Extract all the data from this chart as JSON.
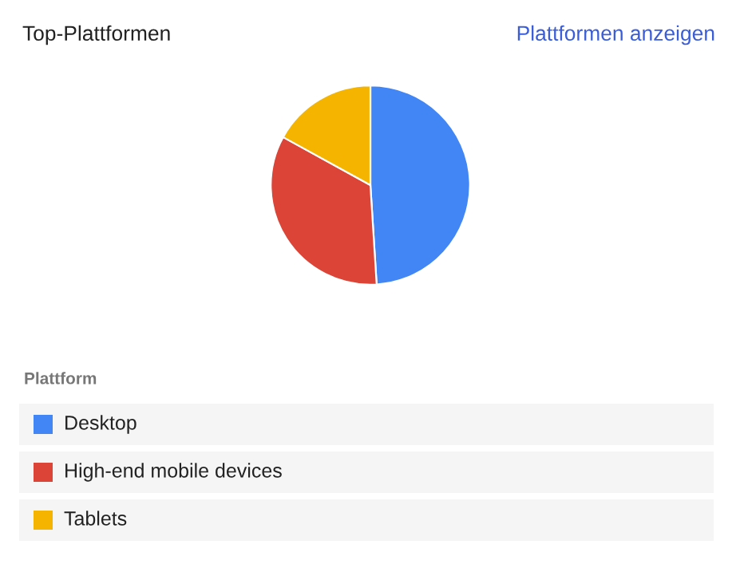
{
  "chart_data": {
    "type": "pie",
    "title": "Top-Plattformen",
    "annotations": [
      "Plattformen anzeigen"
    ],
    "legend_title": "Plattform",
    "legend": "bottom",
    "categories": [
      "Desktop",
      "High-end mobile devices",
      "Tablets"
    ],
    "values": [
      49,
      34,
      17
    ],
    "colors": [
      "#4285f4",
      "#db4437",
      "#f4b400"
    ]
  }
}
